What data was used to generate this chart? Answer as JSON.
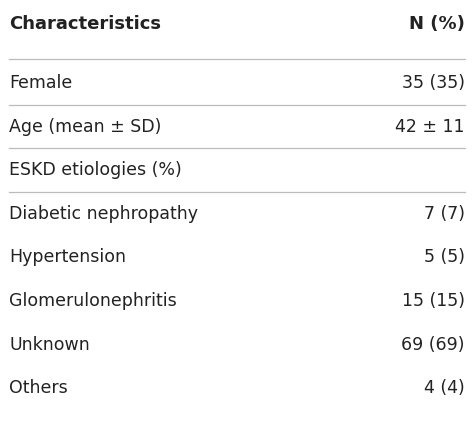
{
  "title_left": "Characteristics",
  "title_right": "N (%)",
  "rows": [
    {
      "label": "Female",
      "value": "35 (35)"
    },
    {
      "label": "Age (mean ± SD)",
      "value": "42 ± 11"
    },
    {
      "label": "ESKD etiologies (%)",
      "value": ""
    },
    {
      "label": "Diabetic nephropathy",
      "value": "7 (7)"
    },
    {
      "label": "Hypertension",
      "value": "5 (5)"
    },
    {
      "label": "Glomerulonephritis",
      "value": "15 (15)"
    },
    {
      "label": "Unknown",
      "value": "69 (69)"
    },
    {
      "label": "Others",
      "value": "4 (4)"
    }
  ],
  "separator_after_rows": [
    0,
    1,
    2
  ],
  "background_color": "#ffffff",
  "line_color": "#bbbbbb",
  "text_color": "#222222",
  "header_font_size": 13,
  "body_font_size": 12.5,
  "fig_width": 4.74,
  "fig_height": 4.23
}
